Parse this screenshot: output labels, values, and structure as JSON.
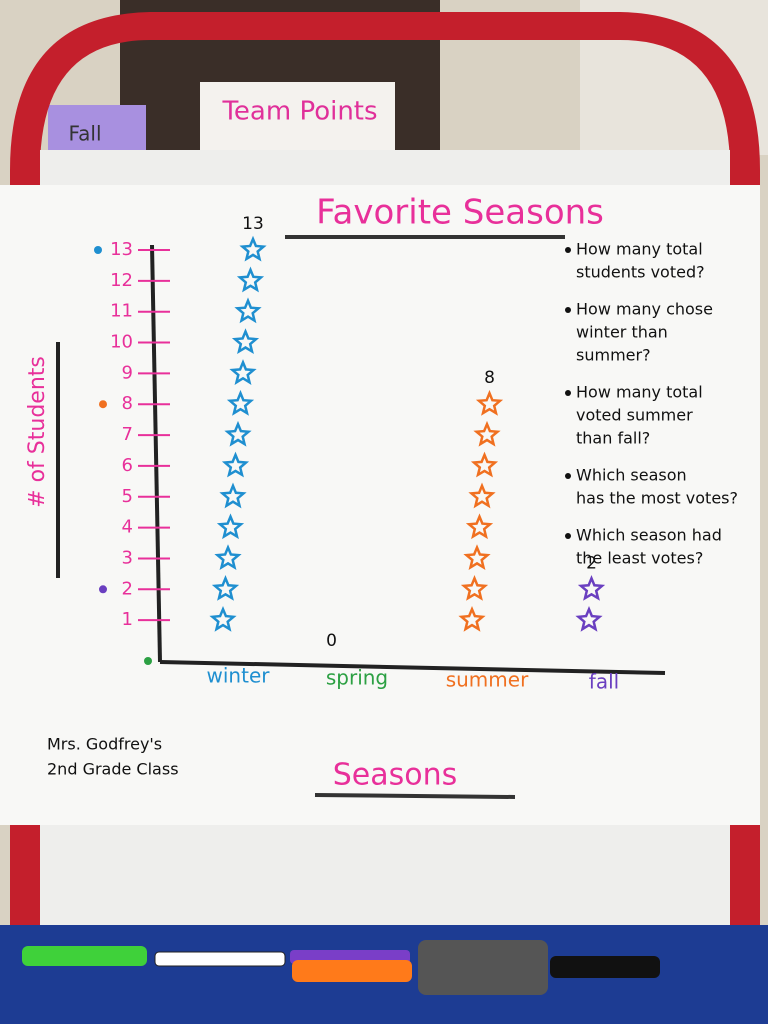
{
  "chart_data": {
    "type": "pictograph",
    "title": "Favorite Seasons",
    "x_label": "Seasons",
    "y_label": "# of Students",
    "categories": [
      "winter",
      "spring",
      "summer",
      "fall"
    ],
    "values": [
      13,
      0,
      8,
      2
    ],
    "colors": [
      "#1f8fd0",
      "#2ca043",
      "#f07020",
      "#6a3fc0"
    ],
    "ylim": [
      0,
      13
    ],
    "yticks": [
      1,
      2,
      3,
      4,
      5,
      6,
      7,
      8,
      9,
      10,
      11,
      12,
      13
    ],
    "questions": [
      [
        "How many total",
        "students voted?"
      ],
      [
        "How many chose",
        "winter than",
        "summer?"
      ],
      [
        "How many total",
        "voted summer",
        "than fall?"
      ],
      [
        "Which season",
        "has the most votes?"
      ],
      [
        "Which season had",
        "the least votes?"
      ]
    ],
    "author": [
      "Mrs. Godfrey's",
      "2nd Grade Class"
    ]
  },
  "background_signs": [
    "Team Points",
    "Fall"
  ]
}
